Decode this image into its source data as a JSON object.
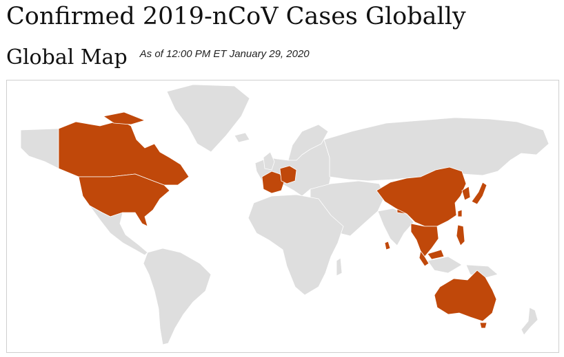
{
  "header": {
    "title": "Confirmed 2019-nCoV Cases Globally",
    "section_title": "Global Map",
    "as_of": "As of 12:00 PM ET January 29, 2020"
  },
  "map": {
    "colors": {
      "confirmed": "#c0480a",
      "no_cases": "#dedede",
      "border": "#ffffff",
      "frame": "#cfcfcf"
    },
    "confirmed_regions": [
      "Canada",
      "United States",
      "France",
      "Germany",
      "China",
      "Japan",
      "South Korea",
      "Taiwan",
      "Vietnam",
      "Cambodia",
      "Thailand",
      "Malaysia",
      "Singapore",
      "Sri Lanka",
      "Nepal",
      "Philippines",
      "Australia"
    ]
  }
}
